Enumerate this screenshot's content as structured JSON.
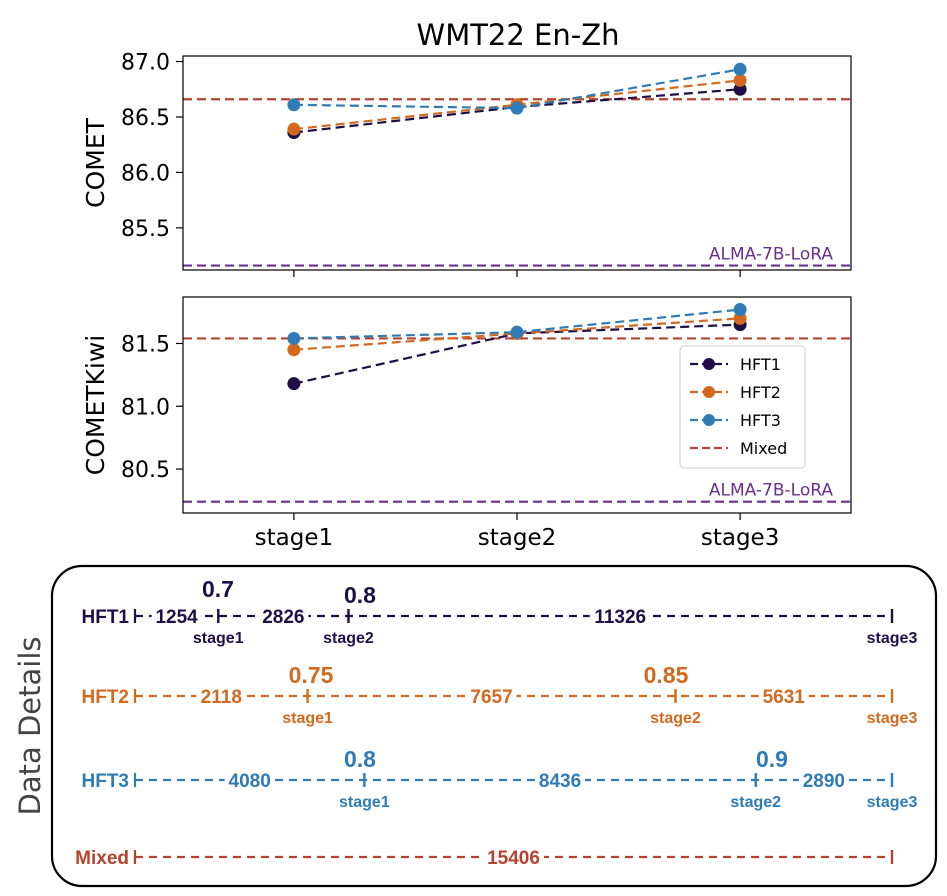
{
  "chart_data": [
    {
      "type": "line",
      "title": "WMT22 En-Zh",
      "ylabel": "COMET",
      "categories": [
        "stage1",
        "stage2",
        "stage3"
      ],
      "ylim": [
        85.12,
        87.05
      ],
      "yticks": [
        85.5,
        86.0,
        86.5,
        87.0
      ],
      "ytick_labels": [
        "85.5",
        "86.0",
        "86.5",
        "87.0"
      ],
      "series": [
        {
          "name": "HFT1",
          "color": "#1f0f46",
          "values": [
            86.36,
            86.59,
            86.75
          ]
        },
        {
          "name": "HFT2",
          "color": "#d2691e",
          "values": [
            86.39,
            86.61,
            86.83
          ]
        },
        {
          "name": "HFT3",
          "color": "#2f7bb6",
          "values": [
            86.61,
            86.58,
            86.93
          ]
        }
      ],
      "reference_lines": [
        {
          "name": "Mixed",
          "value": 86.66,
          "color": "#b5432f",
          "label": ""
        },
        {
          "name": "ALMA-7B-LoRA",
          "value": 85.16,
          "color": "#6a2e8e",
          "label": "ALMA-7B-LoRA"
        }
      ]
    },
    {
      "type": "line",
      "ylabel": "COMETKiwi",
      "xlabel": "",
      "categories": [
        "stage1",
        "stage2",
        "stage3"
      ],
      "ylim": [
        80.15,
        81.87
      ],
      "yticks": [
        80.5,
        81.0,
        81.5
      ],
      "ytick_labels": [
        "80.5",
        "81.0",
        "81.5"
      ],
      "series": [
        {
          "name": "HFT1",
          "color": "#1f0f46",
          "values": [
            81.18,
            81.58,
            81.65
          ]
        },
        {
          "name": "HFT2",
          "color": "#d2691e",
          "values": [
            81.45,
            81.58,
            81.7
          ]
        },
        {
          "name": "HFT3",
          "color": "#2f7bb6",
          "values": [
            81.54,
            81.59,
            81.77
          ]
        }
      ],
      "reference_lines": [
        {
          "name": "Mixed",
          "value": 81.54,
          "color": "#b5432f",
          "label": ""
        },
        {
          "name": "ALMA-7B-LoRA",
          "value": 80.24,
          "color": "#6a2e8e",
          "label": "ALMA-7B-LoRA"
        }
      ],
      "legend": {
        "placement": "center-right",
        "entries": [
          "HFT1",
          "HFT2",
          "HFT3",
          "Mixed"
        ]
      }
    }
  ],
  "data_details": {
    "title": "Data Details",
    "rows": [
      {
        "name": "HFT1",
        "color": "#1f0f46",
        "segments": [
          "1254",
          "2826",
          "11326"
        ],
        "marker_fractions": [
          0.11,
          0.282,
          1.0
        ],
        "stage_labels": [
          "stage1",
          "stage2",
          "stage3"
        ],
        "thresholds": [
          "0.7",
          "0.8"
        ]
      },
      {
        "name": "HFT2",
        "color": "#d2691e",
        "segments": [
          "2118",
          "7657",
          "5631"
        ],
        "marker_fractions": [
          0.228,
          0.714,
          1.0
        ],
        "stage_labels": [
          "stage1",
          "stage2",
          "stage3"
        ],
        "thresholds": [
          "0.75",
          "0.85"
        ]
      },
      {
        "name": "HFT3",
        "color": "#2f7bb6",
        "segments": [
          "4080",
          "8436",
          "2890"
        ],
        "marker_fractions": [
          0.303,
          0.82,
          1.0
        ],
        "stage_labels": [
          "stage1",
          "stage2",
          "stage3"
        ],
        "thresholds": [
          "0.8",
          "0.9"
        ]
      },
      {
        "name": "Mixed",
        "color": "#b5432f",
        "segments": [
          "15406"
        ],
        "marker_fractions": [
          1.0
        ],
        "stage_labels": [],
        "thresholds": []
      }
    ]
  }
}
